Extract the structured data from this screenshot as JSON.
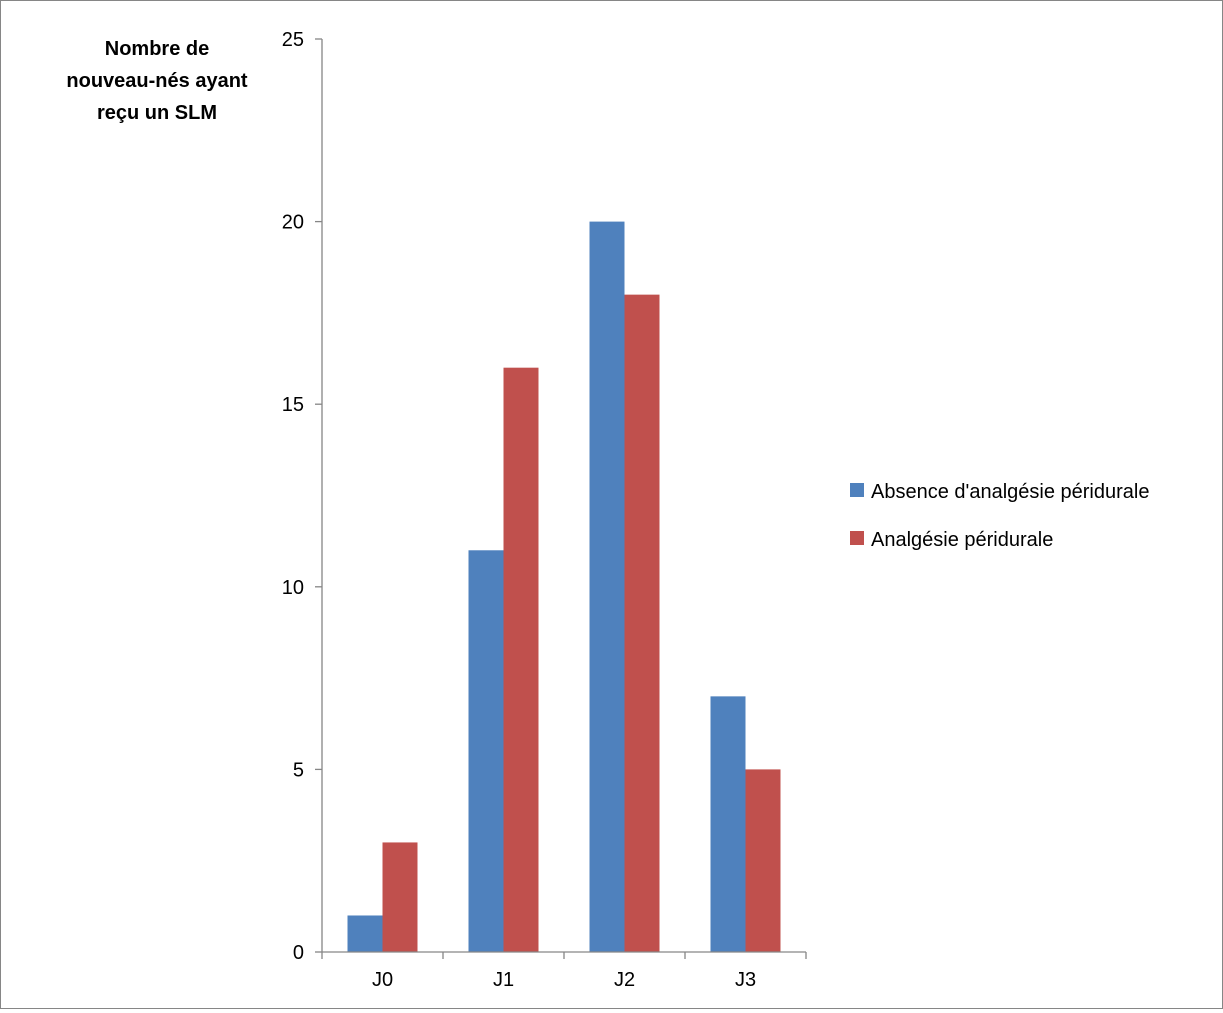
{
  "chart_data": {
    "type": "bar",
    "title": "",
    "xlabel": "",
    "ylabel_lines": [
      "Nombre de",
      "nouveau-nés ayant",
      "reçu un SLM"
    ],
    "categories": [
      "J0",
      "J1",
      "J2",
      "J3"
    ],
    "series": [
      {
        "name": "Absence d'analgésie péridurale",
        "color": "#4F81BD",
        "values": [
          1,
          11,
          20,
          7
        ]
      },
      {
        "name": "Analgésie péridurale",
        "color": "#C0504D",
        "values": [
          3,
          16,
          18,
          5
        ]
      }
    ],
    "ylim": [
      0,
      25
    ],
    "yticks": [
      0,
      5,
      10,
      15,
      20,
      25
    ],
    "grid": false,
    "legend_position": "right"
  }
}
